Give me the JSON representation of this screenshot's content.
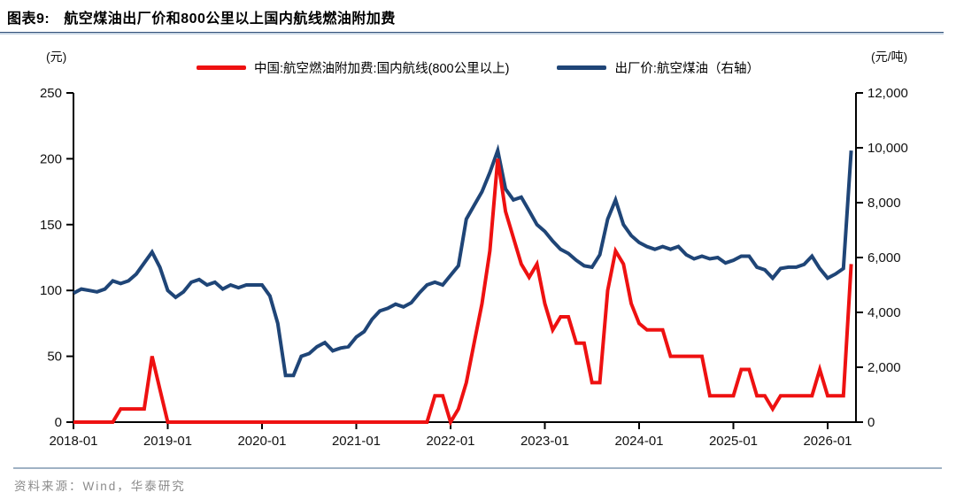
{
  "header": {
    "figure_label": "图表9:",
    "title": "航空煤油出厂价和800公里以上国内航线燃油附加费"
  },
  "axes": {
    "left_unit": "(元)",
    "right_unit": "(元/吨)"
  },
  "legend": {
    "surcharge_label": "中国:航空燃油附加费:国内航线(800公里以上)",
    "kerosene_label": "出厂价:航空煤油（右轴）",
    "surcharge_color": "#ee1111",
    "kerosene_color": "#1f4577"
  },
  "footer": {
    "source": "资料来源：Wind，华泰研究"
  },
  "chart_data": {
    "type": "line",
    "title": "航空煤油出厂价和800公里以上国内航线燃油附加费",
    "x_start_month": "2018-01",
    "x_monthly": true,
    "x_tick_labels": [
      "2018-01",
      "2019-01",
      "2020-01",
      "2021-01",
      "2022-01",
      "2023-01",
      "2024-01",
      "2025-01",
      "2026-01"
    ],
    "left_axis": {
      "unit": "(元)",
      "range": [
        0,
        250
      ],
      "tick_labels": [
        "0",
        "50",
        "100",
        "150",
        "200",
        "250"
      ]
    },
    "right_axis": {
      "unit": "(元/吨)",
      "range": [
        0,
        12000
      ],
      "tick_labels": [
        "0",
        "2,000",
        "4,000",
        "6,000",
        "8,000",
        "10,000",
        "12,000"
      ]
    },
    "grid": false,
    "legend_position": "top-center",
    "series": [
      {
        "name": "出厂价:航空煤油（右轴）",
        "axis": "right",
        "color": "#1f4577",
        "values": [
          4700,
          4850,
          4800,
          4750,
          4850,
          5150,
          5050,
          5150,
          5400,
          5800,
          6200,
          5650,
          4800,
          4550,
          4750,
          5100,
          5200,
          5000,
          5100,
          4850,
          5000,
          4900,
          5000,
          5000,
          5000,
          4600,
          3600,
          1700,
          1700,
          2400,
          2500,
          2750,
          2900,
          2600,
          2700,
          2750,
          3100,
          3300,
          3750,
          4050,
          4150,
          4300,
          4200,
          4350,
          4700,
          5000,
          5100,
          5000,
          5350,
          5700,
          7400,
          7900,
          8400,
          9100,
          9900,
          8500,
          8100,
          8200,
          7700,
          7200,
          6950,
          6600,
          6300,
          6150,
          5900,
          5700,
          5650,
          6100,
          7400,
          8100,
          7200,
          6800,
          6550,
          6400,
          6300,
          6400,
          6300,
          6400,
          6100,
          5950,
          6050,
          5950,
          6000,
          5800,
          5900,
          6050,
          6050,
          5650,
          5550,
          5250,
          5600,
          5650,
          5650,
          5750,
          6050,
          5600,
          5250,
          5400,
          5600,
          9900
        ]
      },
      {
        "name": "中国:航空燃油附加费:国内航线(800公里以上)",
        "axis": "left",
        "color": "#ee1111",
        "values": [
          0,
          0,
          0,
          0,
          0,
          0,
          10,
          10,
          10,
          10,
          50,
          25,
          0,
          0,
          0,
          0,
          0,
          0,
          0,
          0,
          0,
          0,
          0,
          0,
          0,
          0,
          0,
          0,
          0,
          0,
          0,
          0,
          0,
          0,
          0,
          0,
          0,
          0,
          0,
          0,
          0,
          0,
          0,
          0,
          0,
          0,
          20,
          20,
          0,
          10,
          30,
          60,
          90,
          130,
          200,
          160,
          140,
          120,
          110,
          120,
          90,
          70,
          80,
          80,
          60,
          60,
          30,
          30,
          100,
          130,
          120,
          90,
          75,
          70,
          70,
          70,
          50,
          50,
          50,
          50,
          50,
          20,
          20,
          20,
          20,
          40,
          40,
          20,
          20,
          10,
          20,
          20,
          20,
          20,
          20,
          40,
          20,
          20,
          20,
          120
        ]
      }
    ]
  }
}
